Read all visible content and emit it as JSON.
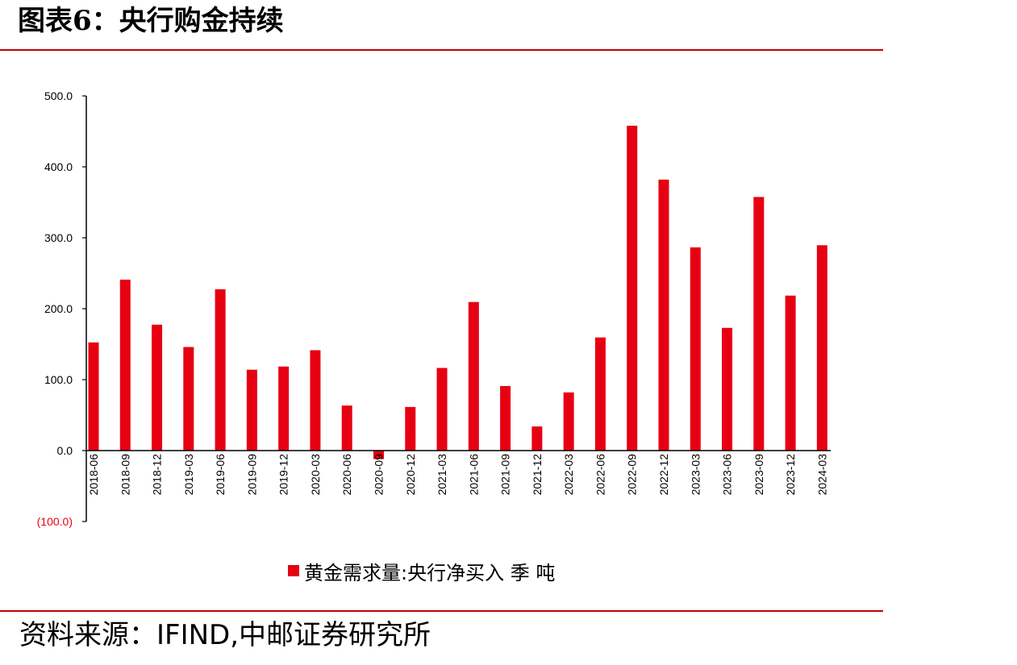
{
  "title": "图表6：央行购金持续",
  "source": "资料来源：IFIND,中邮证券研究所",
  "colors": {
    "bar": "#e60012",
    "rule": "#c00000",
    "negative_label": "#e60012"
  },
  "chart_data": {
    "type": "bar",
    "categories": [
      "2018-06",
      "2018-09",
      "2018-12",
      "2019-03",
      "2019-06",
      "2019-09",
      "2019-12",
      "2020-03",
      "2020-06",
      "2020-09",
      "2020-12",
      "2021-03",
      "2021-06",
      "2021-09",
      "2021-12",
      "2022-03",
      "2022-06",
      "2022-09",
      "2022-12",
      "2023-03",
      "2023-06",
      "2023-09",
      "2023-12",
      "2024-03"
    ],
    "series": [
      {
        "name": "黄金需求量:央行净买入 季 吨",
        "values": [
          152.5,
          241.0,
          177.5,
          146.0,
          227.5,
          114.0,
          118.5,
          141.5,
          63.5,
          -12.0,
          61.5,
          116.5,
          209.5,
          91.0,
          34.0,
          82.0,
          159.5,
          458.0,
          382.0,
          286.5,
          173.0,
          357.5,
          218.5,
          289.5
        ]
      }
    ],
    "ylim": [
      -100,
      500
    ],
    "yticks": [
      -100,
      0,
      100,
      200,
      300,
      400,
      500
    ],
    "ytick_labels": [
      "(100.0)",
      "0.0",
      "100.0",
      "200.0",
      "300.0",
      "400.0",
      "500.0"
    ],
    "xlabel": "",
    "ylabel": "",
    "grid": false,
    "legend_position": "bottom"
  }
}
